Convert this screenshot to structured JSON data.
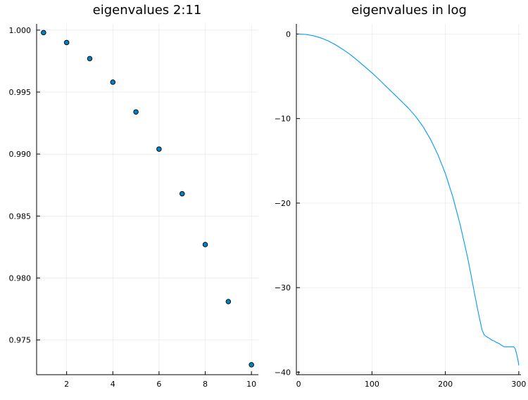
{
  "chart_data": [
    {
      "type": "scatter",
      "title": "eigenvalues 2:11",
      "xlabel": "",
      "ylabel": "",
      "xlim": [
        0.7,
        10.3
      ],
      "ylim": [
        0.9722,
        1.0005
      ],
      "xticks": [
        2,
        4,
        6,
        8,
        10
      ],
      "xtick_labels": [
        "2",
        "4",
        "6",
        "8",
        "10"
      ],
      "yticks": [
        0.975,
        0.98,
        0.985,
        0.99,
        0.995,
        1.0
      ],
      "ytick_labels": [
        "0.975",
        "0.980",
        "0.985",
        "0.990",
        "0.995",
        "1.000"
      ],
      "grid": true,
      "legend": "none",
      "marker_color": "#0081c4",
      "x": [
        1,
        2,
        3,
        4,
        5,
        6,
        7,
        8,
        9,
        10
      ],
      "y": [
        0.9998,
        0.999,
        0.9977,
        0.9958,
        0.9934,
        0.9904,
        0.9868,
        0.9827,
        0.9781,
        0.973
      ]
    },
    {
      "type": "line",
      "title": "eigenvalues in log",
      "xlabel": "",
      "ylabel": "",
      "xlim": [
        -3,
        303
      ],
      "ylim": [
        -40.3,
        1.2
      ],
      "xticks": [
        0,
        100,
        200,
        300
      ],
      "xtick_labels": [
        "0",
        "100",
        "200",
        "300"
      ],
      "yticks": [
        -40,
        -30,
        -20,
        -10,
        0
      ],
      "ytick_labels": [
        "−40",
        "−30",
        "−20",
        "−10",
        "0"
      ],
      "grid": true,
      "legend": "none",
      "line_color": "#009af9",
      "x": [
        0,
        10,
        20,
        30,
        40,
        50,
        60,
        70,
        80,
        90,
        100,
        110,
        120,
        130,
        140,
        150,
        160,
        170,
        180,
        190,
        200,
        210,
        220,
        230,
        235,
        240,
        245,
        250,
        253,
        256,
        258,
        260,
        263,
        266,
        270,
        273,
        276,
        280,
        283,
        287,
        290,
        293,
        295,
        297,
        299,
        300
      ],
      "y": [
        0,
        -0.05,
        -0.2,
        -0.45,
        -0.8,
        -1.25,
        -1.8,
        -2.4,
        -3.1,
        -3.85,
        -4.6,
        -5.4,
        -6.25,
        -7.1,
        -7.95,
        -8.8,
        -9.8,
        -11.0,
        -12.5,
        -14.3,
        -16.5,
        -19.2,
        -22.5,
        -26.3,
        -28.5,
        -30.8,
        -33.0,
        -35.0,
        -35.6,
        -35.8,
        -35.9,
        -36.0,
        -36.2,
        -36.3,
        -36.5,
        -36.6,
        -36.8,
        -37.0,
        -37.0,
        -37.0,
        -37.0,
        -37.0,
        -37.2,
        -37.8,
        -38.6,
        -39.2
      ]
    }
  ]
}
